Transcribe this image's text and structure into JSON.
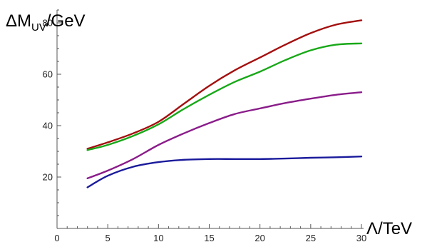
{
  "chart_data": {
    "type": "line",
    "title": "",
    "xlabel": "Λ/TeV",
    "ylabel": {
      "main": "ΔM",
      "sub": "UV",
      "suffix": "/GeV"
    },
    "xlim": [
      0,
      30
    ],
    "ylim": [
      0,
      85
    ],
    "xticks": [
      0,
      5,
      10,
      15,
      20,
      25,
      30
    ],
    "yticks": [
      20,
      40,
      60,
      80
    ],
    "grid": false,
    "legend": "none",
    "series": [
      {
        "color": "#a30f0f",
        "x": [
          3,
          5,
          7.5,
          10,
          12.5,
          15,
          17.5,
          20,
          22.5,
          25,
          27.5,
          30
        ],
        "y": [
          31,
          33.5,
          37,
          41.5,
          48.5,
          55.5,
          61.5,
          66.5,
          71.5,
          76,
          79.3,
          81
        ]
      },
      {
        "color": "#18a818",
        "x": [
          3,
          5,
          7.5,
          10,
          12.5,
          15,
          17.5,
          20,
          22.5,
          25,
          27.5,
          30
        ],
        "y": [
          30.5,
          32.5,
          36,
          40.5,
          46.5,
          52,
          57,
          61,
          65.5,
          69.3,
          71.5,
          72
        ]
      },
      {
        "color": "#8a1c8a",
        "x": [
          3,
          5,
          7.5,
          10,
          12.5,
          15,
          17.5,
          20,
          22.5,
          25,
          27.5,
          30
        ],
        "y": [
          19.5,
          22.5,
          27,
          32.5,
          37,
          41,
          44.5,
          46.7,
          48.8,
          50.5,
          52,
          53
        ]
      },
      {
        "color": "#1a1a9c",
        "x": [
          3,
          5,
          7.5,
          10,
          12.5,
          15,
          17.5,
          20,
          22.5,
          25,
          27.5,
          30
        ],
        "y": [
          16,
          20.5,
          24,
          25.8,
          26.7,
          27,
          27,
          27,
          27.2,
          27.5,
          27.7,
          28
        ]
      }
    ]
  }
}
